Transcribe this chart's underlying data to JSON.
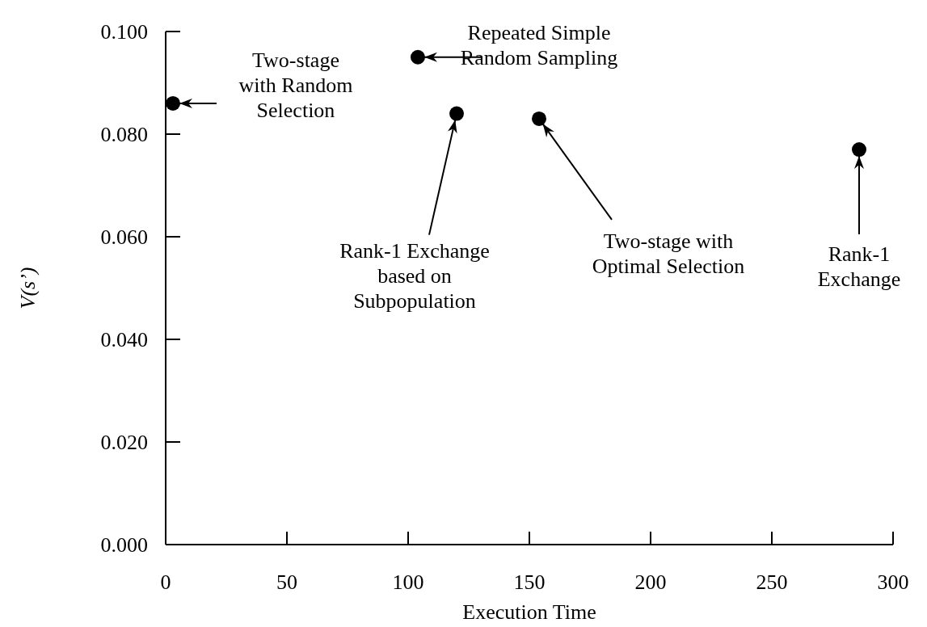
{
  "chart_data": {
    "type": "scatter",
    "xlabel": "Execution Time",
    "ylabel": "V(s’)",
    "x": [
      3,
      104,
      120,
      154,
      286
    ],
    "values": [
      0.086,
      0.095,
      0.084,
      0.083,
      0.077
    ],
    "color": "#000000",
    "marker": "circle",
    "xlim": [
      0,
      300
    ],
    "xticks": [
      0,
      50,
      100,
      150,
      200,
      250,
      300
    ],
    "ylim": [
      0,
      0.1
    ],
    "yticks": [
      {
        "value": 0,
        "label": "0.000"
      },
      {
        "value": 0.02,
        "label": "0.020"
      },
      {
        "value": 0.04,
        "label": "0.040"
      },
      {
        "value": 0.06,
        "label": "0.060"
      },
      {
        "value": 0.08,
        "label": "0.080"
      },
      {
        "value": 0.1,
        "label": "0.100"
      }
    ],
    "annotations": [
      {
        "text": "Two-stage\nwith Random\nSelection",
        "x": 3,
        "y": 0.086
      },
      {
        "text": "Repeated Simple\nRandom Sampling",
        "x": 104,
        "y": 0.095
      },
      {
        "text": "Rank-1 Exchange\nbased on\nSubpopulation",
        "x": 120,
        "y": 0.084
      },
      {
        "text": "Two-stage with\nOptimal Selection",
        "x": 154,
        "y": 0.083
      },
      {
        "text": "Rank-1\nExchange",
        "x": 286,
        "y": 0.077
      }
    ]
  }
}
